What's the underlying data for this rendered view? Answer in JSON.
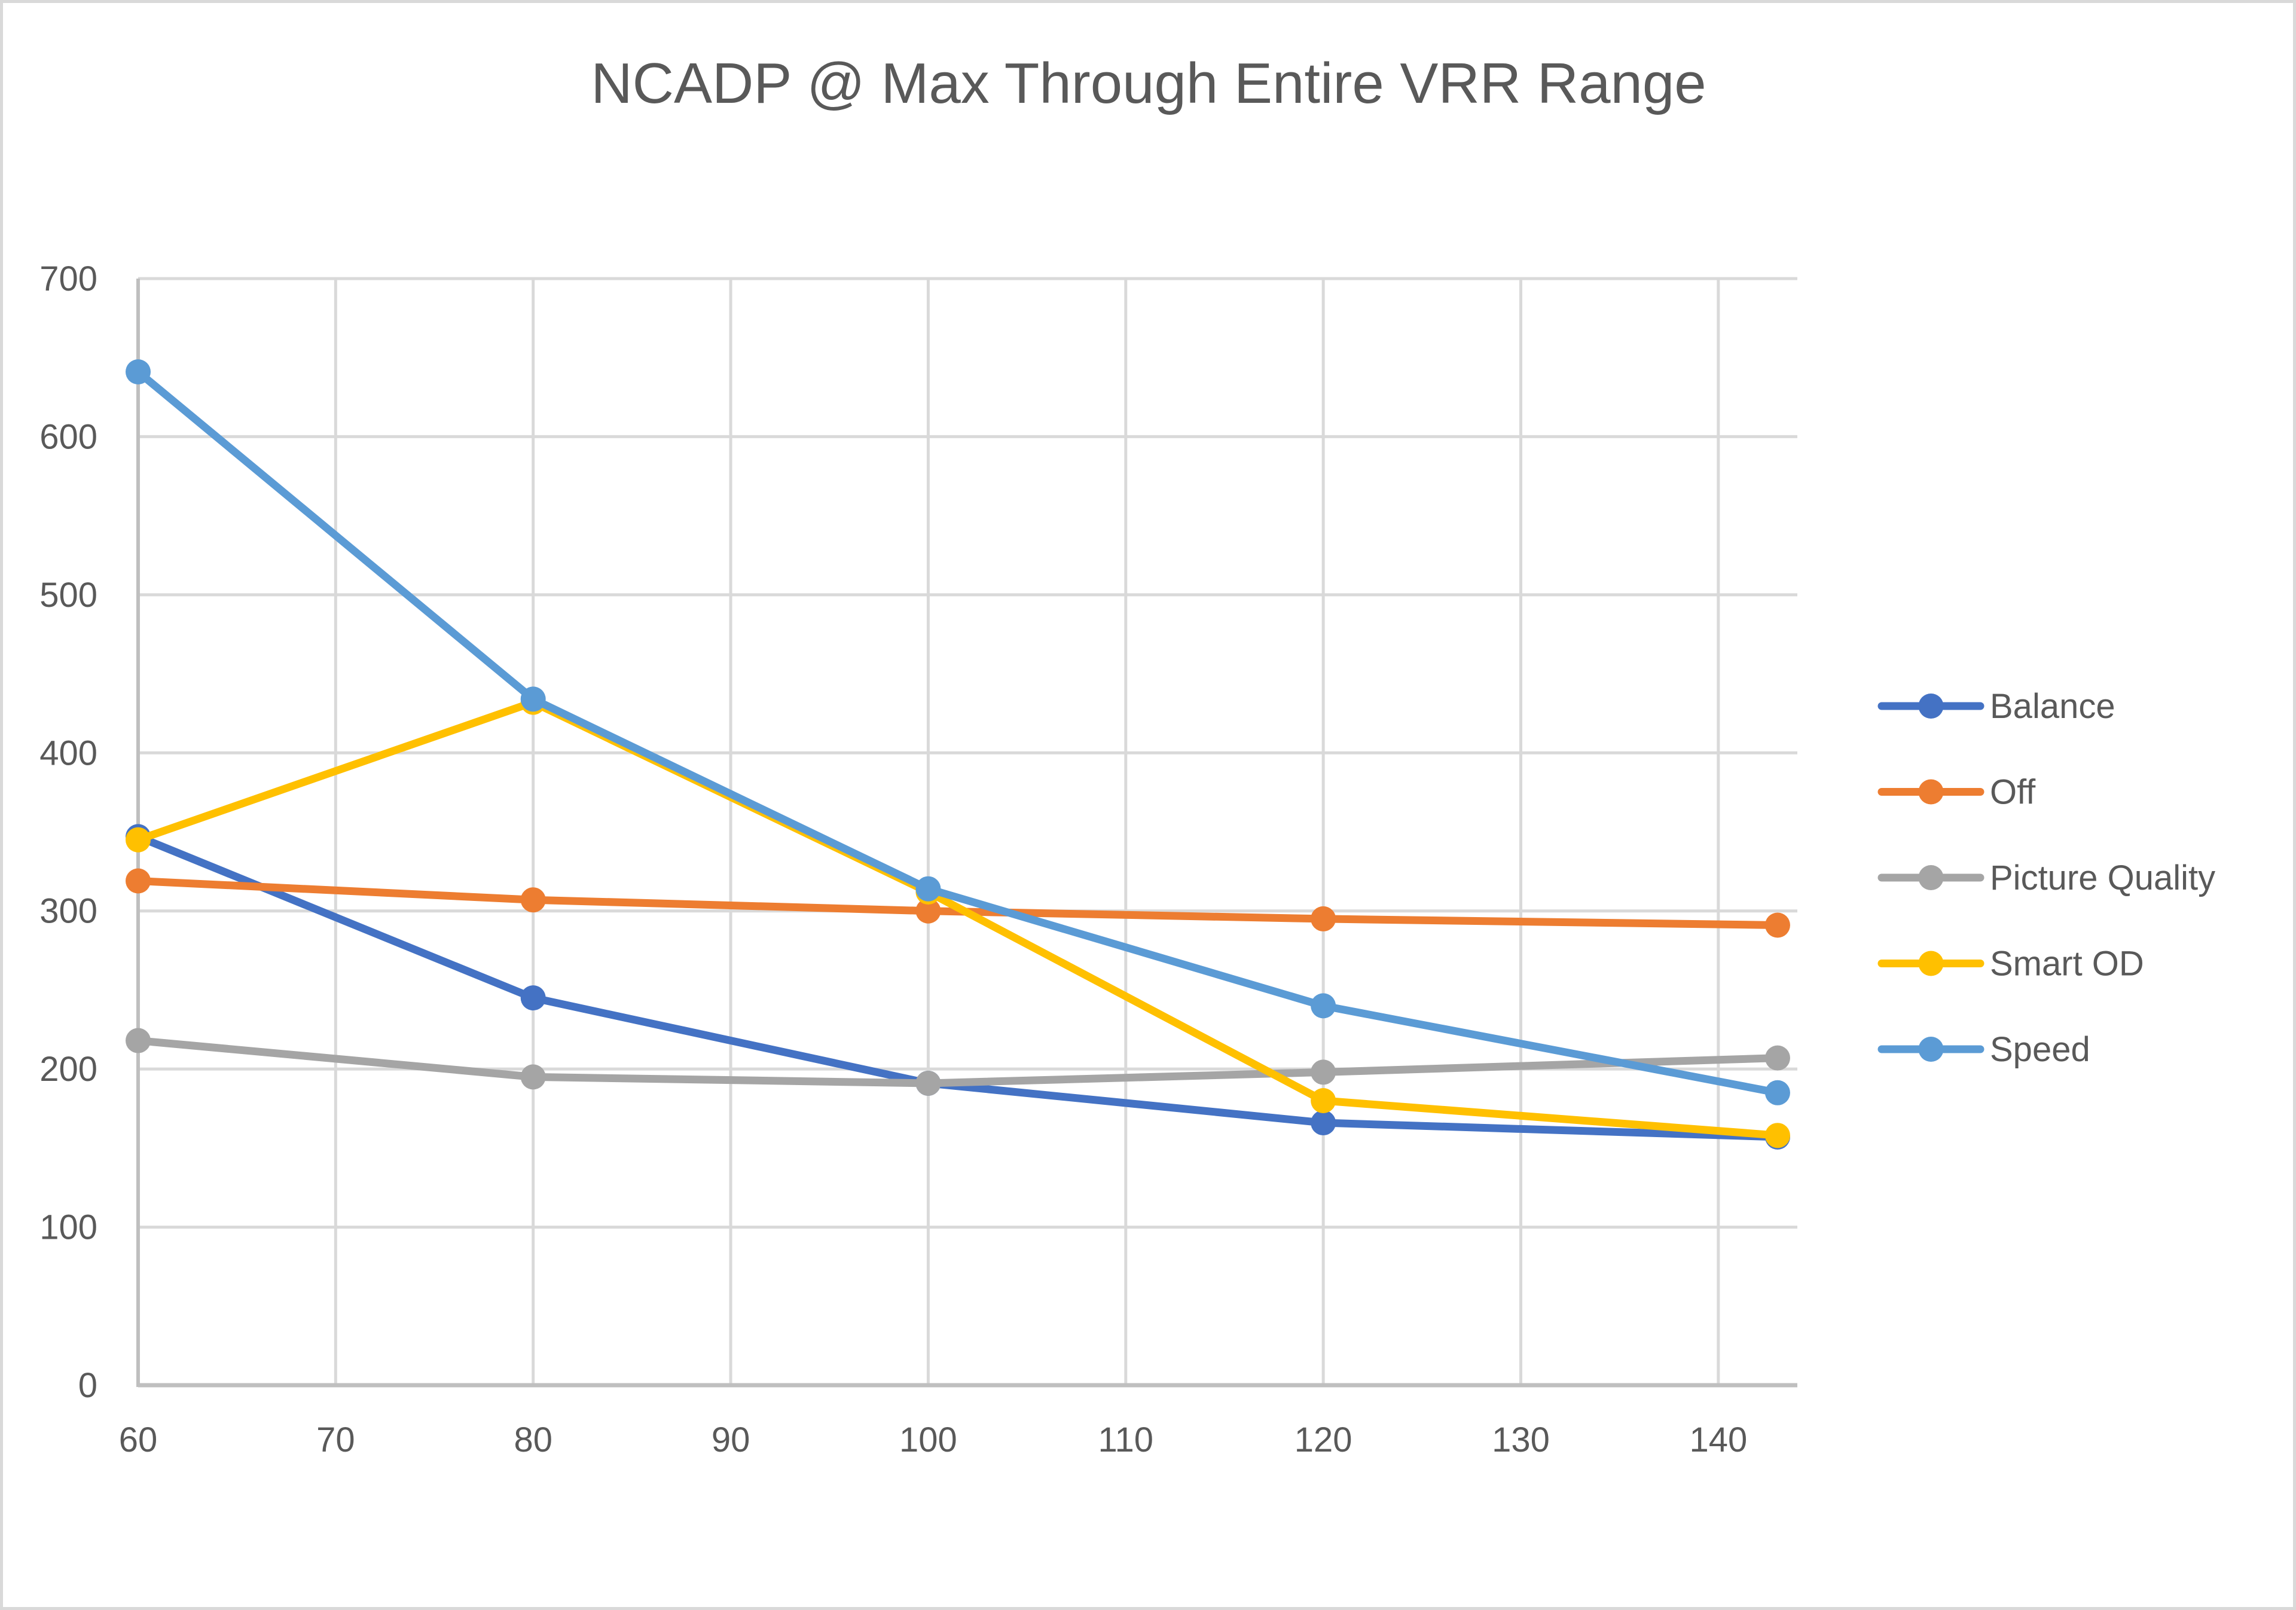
{
  "chart_data": {
    "type": "line",
    "title": "NCADP @ Max Through Entire VRR Range",
    "xlabel": "",
    "ylabel": "",
    "x": [
      60,
      80,
      100,
      120,
      143
    ],
    "xlim": [
      60,
      144
    ],
    "ylim": [
      0,
      700
    ],
    "xticks": [
      60,
      70,
      80,
      90,
      100,
      110,
      120,
      130,
      140
    ],
    "yticks": [
      0,
      100,
      200,
      300,
      400,
      500,
      600,
      700
    ],
    "grid": true,
    "legend_position": "right",
    "series": [
      {
        "name": "Balance",
        "color": "#4472C4",
        "values": [
          347,
          245,
          191,
          166,
          157
        ]
      },
      {
        "name": "Off",
        "color": "#ED7D31",
        "values": [
          319,
          307,
          300,
          295,
          291
        ]
      },
      {
        "name": "Picture Quality",
        "color": "#A5A5A5",
        "values": [
          218,
          195,
          191,
          198,
          207
        ]
      },
      {
        "name": "Smart OD",
        "color": "#FFC000",
        "values": [
          345,
          432,
          312,
          180,
          158
        ]
      },
      {
        "name": "Speed",
        "color": "#5B9BD5",
        "values": [
          641,
          434,
          314,
          240,
          185
        ]
      }
    ]
  }
}
